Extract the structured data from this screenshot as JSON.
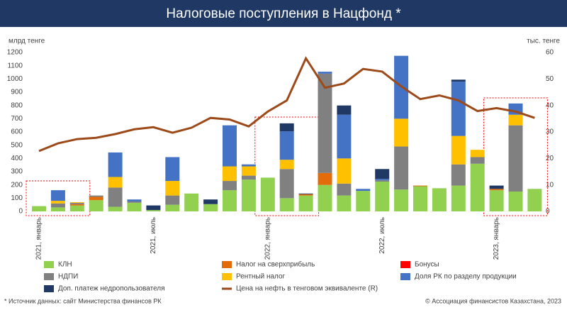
{
  "chart_data": {
    "type": "bar",
    "title": "Налоговые поступления в Нацфонд *",
    "y_label": "млрд тенге",
    "y2_label": "тыс. тенге",
    "source": "* Источник данных: сайт Министерства финансов РК",
    "copyright": "© Ассоциация финансистов Казахстана, 2023",
    "stacked": true,
    "grid": false,
    "categories": [
      "2021, январь",
      null,
      null,
      null,
      null,
      null,
      "2021, июль",
      null,
      null,
      null,
      null,
      null,
      "2022, январь",
      null,
      null,
      null,
      null,
      null,
      "2022, июль",
      null,
      null,
      null,
      null,
      null,
      "2023, январь",
      null,
      null
    ],
    "ylim": [
      0,
      1200
    ],
    "yticks": [
      0,
      100,
      200,
      300,
      400,
      500,
      600,
      700,
      800,
      900,
      1000,
      1100,
      1200
    ],
    "y2lim": [
      0,
      60
    ],
    "y2ticks": [
      0,
      10,
      20,
      30,
      40,
      50,
      60
    ],
    "series": [
      {
        "name": "КЛН",
        "color": "#92d050",
        "values": [
          40,
          30,
          45,
          85,
          35,
          65,
          10,
          50,
          135,
          55,
          160,
          240,
          255,
          100,
          120,
          200,
          120,
          155,
          225,
          165,
          190,
          175,
          195,
          360,
          160,
          150,
          170
        ]
      },
      {
        "name": "Налог на сверхприбыль",
        "color": "#e26b0a",
        "values": [
          0,
          0,
          10,
          25,
          0,
          0,
          0,
          0,
          0,
          0,
          0,
          0,
          0,
          0,
          10,
          90,
          0,
          0,
          0,
          0,
          5,
          0,
          0,
          0,
          10,
          0,
          0
        ]
      },
      {
        "name": "Бонусы",
        "color": "#ff0000",
        "values": [
          0,
          0,
          0,
          0,
          0,
          0,
          0,
          0,
          0,
          0,
          0,
          0,
          0,
          0,
          0,
          0,
          0,
          0,
          0,
          0,
          0,
          0,
          0,
          0,
          0,
          0,
          0
        ]
      },
      {
        "name": "НДПИ",
        "color": "#808080",
        "values": [
          0,
          30,
          10,
          10,
          145,
          10,
          0,
          70,
          0,
          0,
          70,
          30,
          0,
          220,
          0,
          750,
          90,
          0,
          10,
          325,
          0,
          0,
          160,
          50,
          0,
          500,
          0
        ]
      },
      {
        "name": "Рентный налог",
        "color": "#ffc000",
        "values": [
          0,
          20,
          5,
          0,
          80,
          0,
          0,
          110,
          0,
          0,
          110,
          70,
          0,
          70,
          0,
          0,
          190,
          0,
          0,
          210,
          0,
          0,
          215,
          55,
          0,
          80,
          0
        ]
      },
      {
        "name": "Доля РК по разделу продукции",
        "color": "#4472c4",
        "values": [
          0,
          80,
          0,
          0,
          185,
          15,
          0,
          180,
          0,
          0,
          310,
          15,
          0,
          215,
          0,
          15,
          330,
          15,
          10,
          475,
          0,
          0,
          410,
          0,
          0,
          85,
          0
        ]
      },
      {
        "name": "Доп. платеж недропользователя",
        "color": "#1f3864",
        "values": [
          0,
          0,
          0,
          0,
          0,
          0,
          35,
          0,
          0,
          35,
          0,
          0,
          0,
          60,
          5,
          0,
          70,
          0,
          75,
          0,
          0,
          0,
          15,
          0,
          25,
          0,
          0
        ]
      },
      {
        "name": "Цена на нефть в тенговом эквиваленте (R)",
        "color": "#9c4a1a",
        "type": "line",
        "axis": "y2",
        "values": [
          22.8,
          25.7,
          27.3,
          27.8,
          29.2,
          31,
          31.8,
          29.7,
          31.6,
          35.3,
          34.7,
          32.1,
          37.7,
          41.9,
          57.8,
          46.7,
          48.3,
          53.8,
          52.8,
          47.2,
          42.4,
          43.8,
          41.9,
          37.9,
          39,
          37.7,
          35.3
        ]
      }
    ]
  }
}
